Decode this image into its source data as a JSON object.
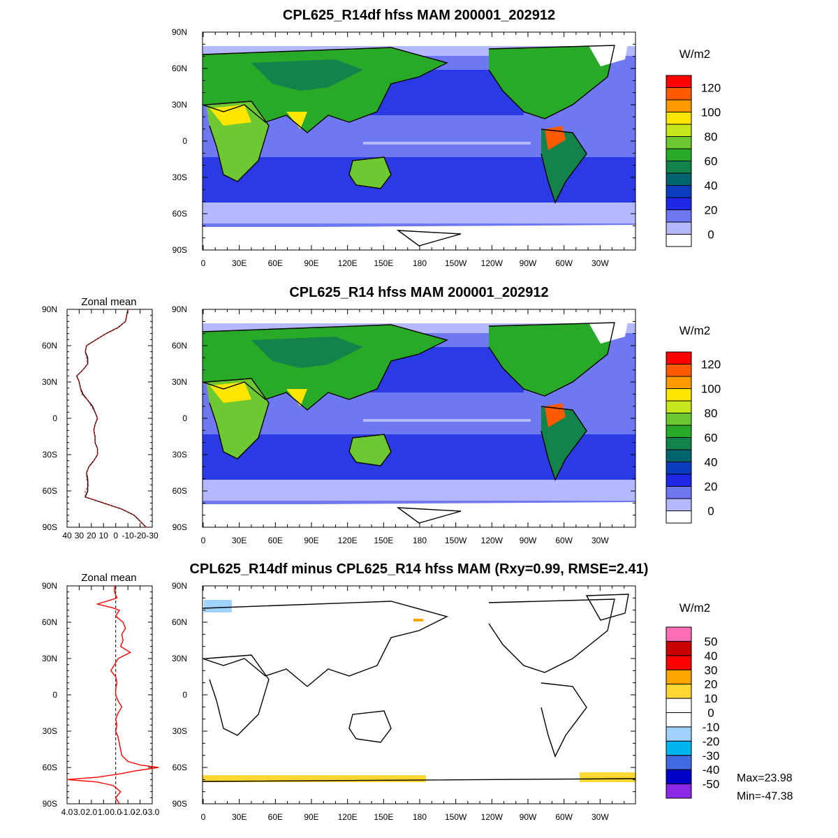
{
  "panels": [
    {
      "title": "CPL625_R14df hfss MAM 200001_202912",
      "colorbar_unit": "W/m2",
      "colorbar_labels": [
        "120",
        "100",
        "80",
        "60",
        "40",
        "20",
        "0"
      ],
      "colors": [
        "#ff0000",
        "#ff5a00",
        "#ff9a00",
        "#ffe600",
        "#c8e61e",
        "#6ec832",
        "#28aa28",
        "#14824b",
        "#00646e",
        "#0a3cbe",
        "#1e28e6",
        "#6e78f0",
        "#b4b9ff",
        "#ffffff"
      ],
      "zonal_mean": null
    },
    {
      "title": "CPL625_R14 hfss MAM 200001_202912",
      "colorbar_unit": "W/m2",
      "colorbar_labels": [
        "120",
        "100",
        "80",
        "60",
        "40",
        "20",
        "0"
      ],
      "colors": [
        "#ff0000",
        "#ff5a00",
        "#ff9a00",
        "#ffe600",
        "#c8e61e",
        "#6ec832",
        "#28aa28",
        "#14824b",
        "#00646e",
        "#0a3cbe",
        "#1e28e6",
        "#6e78f0",
        "#b4b9ff",
        "#ffffff"
      ],
      "zonal_mean": {
        "title": "Zonal mean",
        "x_tick_labels": [
          "40",
          "30",
          "20",
          "10",
          "0",
          "-10",
          "-20",
          "-30"
        ],
        "xlim": [
          40,
          -30
        ],
        "lat": [
          90,
          80,
          75,
          70,
          65,
          60,
          55,
          50,
          45,
          40,
          35,
          30,
          25,
          20,
          15,
          10,
          5,
          0,
          -5,
          -10,
          -15,
          -20,
          -25,
          -30,
          -35,
          -40,
          -45,
          -50,
          -55,
          -60,
          -65,
          -70,
          -75,
          -80,
          -85,
          -90
        ],
        "series": [
          {
            "values": [
              -10,
              -8,
              -2,
              8,
              16,
              24,
              25,
              23,
              23,
              27,
              32,
              30,
              29,
              27,
              23,
              19,
              17,
              15,
              17,
              18,
              17,
              17,
              15,
              15,
              18,
              22,
              24,
              23,
              23,
              23,
              25,
              10,
              -5,
              -15,
              -20,
              -25
            ]
          },
          {
            "values": [
              -10,
              -8,
              -2,
              8,
              16,
              24,
              25,
              24,
              23,
              27,
              32,
              30,
              29,
              28,
              23,
              20,
              17,
              15,
              17,
              18,
              17,
              17,
              15,
              15,
              18,
              22,
              24,
              24,
              22,
              25,
              25,
              10,
              -5,
              -15,
              -20,
              -25
            ]
          }
        ]
      }
    },
    {
      "title": "CPL625_R14df minus CPL625_R14 hfss MAM (Rxy=0.99, RMSE=2.41)",
      "colorbar_unit": "W/m2",
      "colorbar_labels": [
        "50",
        "40",
        "30",
        "20",
        "10",
        "0",
        "-10",
        "-20",
        "-30",
        "-40",
        "-50"
      ],
      "colors": [
        "#ff6eb4",
        "#c80000",
        "#ff0000",
        "#ffa500",
        "#ffd732",
        "#ffffff",
        "#ffffff",
        "#a0d2ff",
        "#00b4f0",
        "#4169e1",
        "#0000c8",
        "#8c28e6"
      ],
      "stats": {
        "max": "Max=23.98",
        "min": "Min=-47.38"
      },
      "zonal_mean": {
        "title": "Zonal mean",
        "x_tick_labels": [
          "4.0",
          "3.0",
          "2.0",
          "1.0",
          "0.0",
          "-1.0",
          "-2.0",
          "-3.0"
        ],
        "xlim": [
          4.0,
          -3.0
        ],
        "lat": [
          90,
          85,
          80,
          75,
          72,
          70,
          65,
          60,
          55,
          50,
          45,
          40,
          35,
          30,
          25,
          20,
          15,
          10,
          5,
          0,
          -5,
          -10,
          -15,
          -20,
          -25,
          -30,
          -35,
          -40,
          -45,
          -50,
          -55,
          -58,
          -60,
          -63,
          -65,
          -68,
          -70,
          -72,
          -75,
          -80,
          -85,
          -90
        ],
        "series": [
          {
            "values": [
              0.1,
              0.1,
              -0.1,
              1.5,
              0.3,
              -0.3,
              0.0,
              -0.6,
              -0.8,
              -0.5,
              -0.6,
              -0.4,
              -1.2,
              -0.2,
              0.1,
              0.4,
              0.0,
              -0.1,
              0.0,
              0.0,
              -0.2,
              -0.5,
              -0.2,
              0.0,
              -0.1,
              0.0,
              -0.2,
              -0.3,
              -0.4,
              -0.5,
              -1.0,
              -2.0,
              -3.5,
              -1.5,
              -0.5,
              1.5,
              4.0,
              1.5,
              0.2,
              -0.4,
              0.0,
              -0.3
            ]
          }
        ]
      }
    }
  ],
  "map_axes": {
    "lon_tick_labels": [
      "0",
      "30E",
      "60E",
      "90E",
      "120E",
      "150E",
      "180",
      "150W",
      "120W",
      "90W",
      "60W",
      "30W"
    ],
    "lat_tick_labels": [
      "90N",
      "60N",
      "30N",
      "0",
      "30S",
      "60S",
      "90S"
    ]
  }
}
